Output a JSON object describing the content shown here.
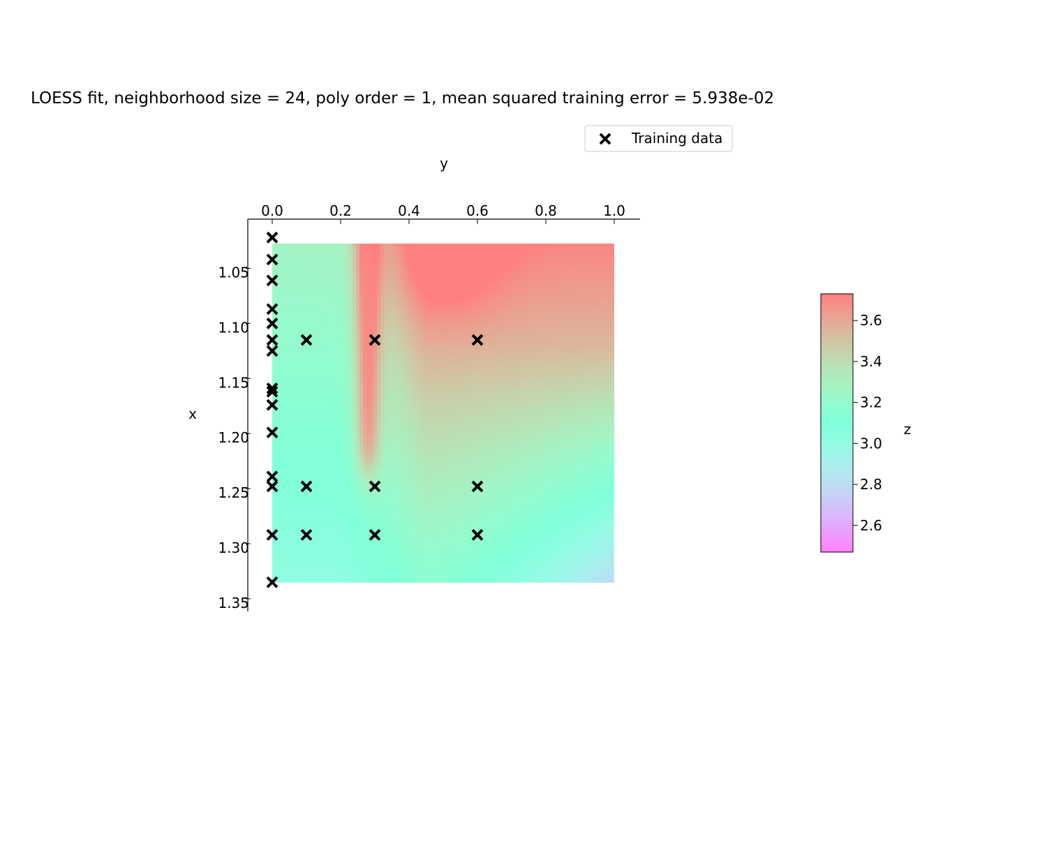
{
  "chart_data": {
    "type": "heatmap",
    "title": "LOESS fit, neighborhood size = 24, poly order = 1, mean squared training error = 5.938e-02",
    "xlabel": "y",
    "ylabel": "x",
    "colorbar_label": "z",
    "x_axis_position": "top",
    "y_axis_inverted": true,
    "xlim": [
      -0.07,
      1.075
    ],
    "ylim": [
      1.357,
      1.008
    ],
    "x_ticks": [
      0.0,
      0.2,
      0.4,
      0.6,
      0.8,
      1.0
    ],
    "x_tick_labels": [
      "0.0",
      "0.2",
      "0.4",
      "0.6",
      "0.8",
      "1.0"
    ],
    "y_ticks": [
      1.05,
      1.1,
      1.15,
      1.2,
      1.25,
      1.3,
      1.35
    ],
    "y_tick_labels": [
      "1.05",
      "1.10",
      "1.15",
      "1.20",
      "1.25",
      "1.30",
      "1.35"
    ],
    "surface_extent": {
      "y": [
        0.0,
        1.0
      ],
      "x": [
        1.022,
        1.335
      ]
    },
    "colormap": "rainbow",
    "colormap_alpha": 0.5,
    "color_range": [
      2.47,
      3.73
    ],
    "colorbar_ticks": [
      2.6,
      2.8,
      3.0,
      3.2,
      3.4,
      3.6
    ],
    "colorbar_tick_labels": [
      "2.6",
      "2.8",
      "3.0",
      "3.2",
      "3.4",
      "3.6"
    ],
    "grid": false,
    "legend": {
      "position": "top-right",
      "entries": [
        "Training data"
      ]
    },
    "series": [
      {
        "name": "Training data",
        "marker": "x",
        "color": "#000000",
        "points": [
          {
            "y": 0.0,
            "x": 1.022
          },
          {
            "y": 0.0,
            "x": 1.042
          },
          {
            "y": 0.0,
            "x": 1.061
          },
          {
            "y": 0.0,
            "x": 1.087
          },
          {
            "y": 0.0,
            "x": 1.1
          },
          {
            "y": 0.0,
            "x": 1.115
          },
          {
            "y": 0.0,
            "x": 1.125
          },
          {
            "y": 0.0,
            "x": 1.159
          },
          {
            "y": 0.0,
            "x": 1.162
          },
          {
            "y": 0.0,
            "x": 1.174
          },
          {
            "y": 0.0,
            "x": 1.199
          },
          {
            "y": 0.0,
            "x": 1.239
          },
          {
            "y": 0.0,
            "x": 1.248
          },
          {
            "y": 0.0,
            "x": 1.292
          },
          {
            "y": 0.0,
            "x": 1.335
          },
          {
            "y": 0.1,
            "x": 1.115
          },
          {
            "y": 0.3,
            "x": 1.115
          },
          {
            "y": 0.6,
            "x": 1.115
          },
          {
            "y": 0.1,
            "x": 1.248
          },
          {
            "y": 0.3,
            "x": 1.248
          },
          {
            "y": 0.6,
            "x": 1.248
          },
          {
            "y": 0.1,
            "x": 1.292
          },
          {
            "y": 0.3,
            "x": 1.292
          },
          {
            "y": 0.6,
            "x": 1.292
          }
        ]
      }
    ]
  }
}
